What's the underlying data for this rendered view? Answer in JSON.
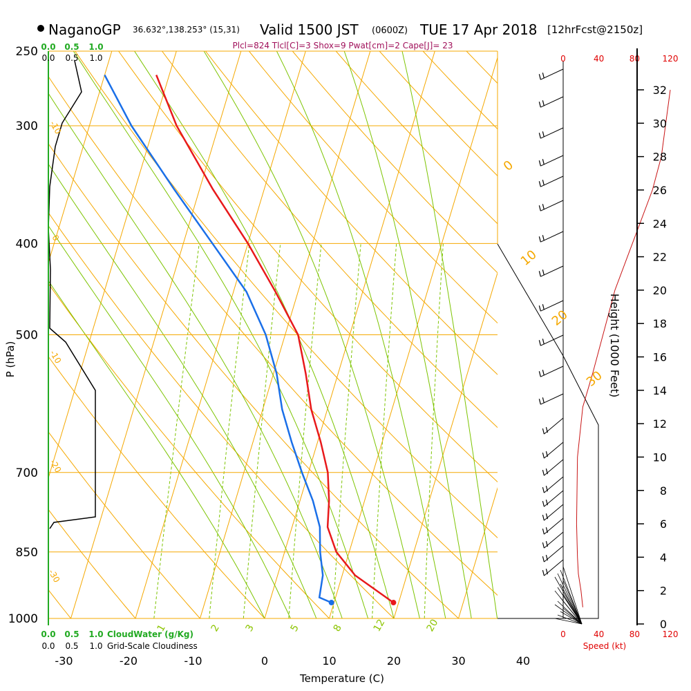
{
  "header": {
    "station": "NaganoGP",
    "coords": "36.632°,138.253° (15,31)",
    "valid_prefix": "Valid 1500 JST",
    "valid_utc": "(0600Z)",
    "valid_date": "TUE 17 Apr 2018",
    "forecast": "[12hrFcst@2150z]",
    "indices": "Plcl=824 Tlcl[C]=3 Shox=9 Pwat[cm]=2 Cape[J]= 23"
  },
  "chart_data": {
    "type": "line",
    "title": "",
    "xlabel": "Temperature (C)",
    "ylabel": "P (hPa)",
    "right_label": "Height (1000 Feet)",
    "x_ticks": [
      -30,
      -20,
      -10,
      0,
      10,
      20,
      30,
      40
    ],
    "pressure_ticks": [
      250,
      300,
      400,
      500,
      700,
      850,
      1000
    ],
    "height_ticks": [
      0,
      2,
      4,
      6,
      8,
      10,
      12,
      14,
      16,
      18,
      20,
      22,
      24,
      26,
      28,
      30,
      32
    ],
    "speed_ticks": [
      0,
      40,
      80,
      120
    ],
    "speed_label": "Speed (kt)",
    "cloud_water_ticks": [
      "0.0",
      "0.5",
      "1.0"
    ],
    "cloud_water_label": "CloudWater (g/Kg)",
    "cloudiness_ticks": [
      "0.0",
      "0.5",
      "1.0"
    ],
    "cloudiness_label": "Grid-Scale Cloudiness",
    "mixing_ratio_labels": [
      "1",
      "2",
      "3",
      "5",
      "8",
      "12",
      "20"
    ],
    "dry_adiabat_labels": [
      "0",
      "10",
      "20",
      "30"
    ],
    "left_labels": [
      "-10",
      "0",
      "-10",
      "-20",
      "-30"
    ],
    "temperature_profile": {
      "color": "#e8191b",
      "points": [
        [
          962,
          19.2
        ],
        [
          900,
          12.0
        ],
        [
          850,
          8.0
        ],
        [
          800,
          5.5
        ],
        [
          750,
          4.5
        ],
        [
          700,
          3.0
        ],
        [
          650,
          0.5
        ],
        [
          600,
          -2.5
        ],
        [
          550,
          -5.0
        ],
        [
          500,
          -8.0
        ],
        [
          450,
          -13.5
        ],
        [
          400,
          -20.0
        ],
        [
          350,
          -28.0
        ],
        [
          300,
          -36.5
        ],
        [
          265,
          -42.0
        ]
      ]
    },
    "dewpoint_profile": {
      "color": "#1a6fe8",
      "points": [
        [
          962,
          9.6
        ],
        [
          950,
          7.5
        ],
        [
          900,
          7.0
        ],
        [
          850,
          5.5
        ],
        [
          800,
          4.3
        ],
        [
          750,
          2.0
        ],
        [
          700,
          -1.0
        ],
        [
          650,
          -4.0
        ],
        [
          600,
          -7.0
        ],
        [
          550,
          -9.5
        ],
        [
          500,
          -13.0
        ],
        [
          450,
          -18.0
        ],
        [
          400,
          -25.5
        ],
        [
          350,
          -34.0
        ],
        [
          300,
          -43.5
        ],
        [
          265,
          -50.0
        ]
      ]
    },
    "wind_speed_profile": {
      "color": "#c81414",
      "points": [
        [
          1.0,
          22
        ],
        [
          2.0,
          20
        ],
        [
          3.0,
          17
        ],
        [
          4.0,
          16
        ],
        [
          6.0,
          15
        ],
        [
          10.0,
          16
        ],
        [
          13.0,
          22
        ],
        [
          15.0,
          33
        ],
        [
          18.0,
          48
        ],
        [
          20.0,
          58
        ],
        [
          22.0,
          72
        ],
        [
          24.0,
          86
        ],
        [
          26.0,
          100
        ],
        [
          28.0,
          110
        ],
        [
          30.0,
          115
        ],
        [
          32.0,
          120
        ]
      ]
    }
  }
}
